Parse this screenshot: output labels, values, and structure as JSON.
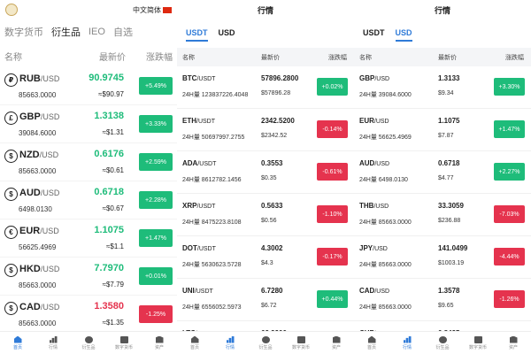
{
  "colors": {
    "up": "#1ebc7a",
    "down": "#e5334e",
    "accent": "#2f7bd8"
  },
  "panel1": {
    "lang_label": "中文简体",
    "tabs": [
      "数字货币",
      "衍生品",
      "IEO",
      "自选"
    ],
    "active_tab": 1,
    "headers": {
      "name": "名称",
      "price": "最新价",
      "change": "涨跌幅"
    },
    "rows": [
      {
        "icon": "₽",
        "sym": "RUB",
        "quote": "/USD",
        "vol": "85663.0000",
        "price": "90.9745",
        "sub": "≈$90.97",
        "change": "+5.49%",
        "dir": "up"
      },
      {
        "icon": "£",
        "sym": "GBP",
        "quote": "/USD",
        "vol": "39084.6000",
        "price": "1.3138",
        "sub": "≈$1.31",
        "change": "+3.33%",
        "dir": "up"
      },
      {
        "icon": "$",
        "sym": "NZD",
        "quote": "/USD",
        "vol": "85663.0000",
        "price": "0.6176",
        "sub": "≈$0.61",
        "change": "+2.59%",
        "dir": "up"
      },
      {
        "icon": "$",
        "sym": "AUD",
        "quote": "/USD",
        "vol": "6498.0130",
        "price": "0.6718",
        "sub": "≈$0.67",
        "change": "+2.28%",
        "dir": "up"
      },
      {
        "icon": "€",
        "sym": "EUR",
        "quote": "/USD",
        "vol": "56625.4969",
        "price": "1.1075",
        "sub": "≈$1.1",
        "change": "+1.47%",
        "dir": "up"
      },
      {
        "icon": "$",
        "sym": "HKD",
        "quote": "/USD",
        "vol": "85663.0000",
        "price": "7.7970",
        "sub": "≈$7.79",
        "change": "+0.01%",
        "dir": "up"
      },
      {
        "icon": "$",
        "sym": "CAD",
        "quote": "/USD",
        "vol": "85663.0000",
        "price": "1.3580",
        "sub": "≈$1.35",
        "change": "-1.25%",
        "dir": "down"
      }
    ]
  },
  "panel2": {
    "title": "行情",
    "tabs": [
      "USDT",
      "USD"
    ],
    "active_tab": 0,
    "headers": {
      "name": "名称",
      "price": "最新价",
      "change": "涨跌幅"
    },
    "rows": [
      {
        "sym": "BTC",
        "quote": "/USDT",
        "vol": "24H量 123837226.4048",
        "price": "57896.2800",
        "sub": "$57896.28",
        "change": "+0.02%",
        "dir": "up"
      },
      {
        "sym": "ETH",
        "quote": "/USDT",
        "vol": "24H量 50697997.2755",
        "price": "2342.5200",
        "sub": "$2342.52",
        "change": "-0.14%",
        "dir": "down"
      },
      {
        "sym": "ADA",
        "quote": "/USDT",
        "vol": "24H量 8612782.1456",
        "price": "0.3553",
        "sub": "$0.35",
        "change": "-0.61%",
        "dir": "down"
      },
      {
        "sym": "XRP",
        "quote": "/USDT",
        "vol": "24H量 8475223.8108",
        "price": "0.5633",
        "sub": "$0.56",
        "change": "-1.10%",
        "dir": "down"
      },
      {
        "sym": "DOT",
        "quote": "/USDT",
        "vol": "24H量 5630623.5728",
        "price": "4.3002",
        "sub": "$4.3",
        "change": "-0.17%",
        "dir": "down"
      },
      {
        "sym": "UNI",
        "quote": "/USDT",
        "vol": "24H量 6556052.5973",
        "price": "6.7280",
        "sub": "$6.72",
        "change": "+0.44%",
        "dir": "up"
      },
      {
        "sym": "LTC",
        "quote": "/USDT",
        "vol": "24H量 3675665.1820",
        "price": "62.9900",
        "sub": "$62.99",
        "change": "+0.11%",
        "dir": "up"
      }
    ]
  },
  "panel3": {
    "title": "行情",
    "tabs": [
      "USDT",
      "USD"
    ],
    "active_tab": 1,
    "headers": {
      "name": "名称",
      "price": "最新价",
      "change": "涨跌幅"
    },
    "rows": [
      {
        "sym": "GBP",
        "quote": "/USD",
        "vol": "24H量 39084.6000",
        "price": "1.3133",
        "sub": "$9.34",
        "change": "+3.30%",
        "dir": "up"
      },
      {
        "sym": "EUR",
        "quote": "/USD",
        "vol": "24H量 56625.4969",
        "price": "1.1075",
        "sub": "$7.87",
        "change": "+1.47%",
        "dir": "up"
      },
      {
        "sym": "AUD",
        "quote": "/USD",
        "vol": "24H量 6498.0130",
        "price": "0.6718",
        "sub": "$4.77",
        "change": "+2.27%",
        "dir": "up"
      },
      {
        "sym": "THB",
        "quote": "/USD",
        "vol": "24H量 85663.0000",
        "price": "33.3059",
        "sub": "$236.88",
        "change": "-7.03%",
        "dir": "down"
      },
      {
        "sym": "JPY",
        "quote": "/USD",
        "vol": "24H量 85663.0000",
        "price": "141.0499",
        "sub": "$1003.19",
        "change": "-4.44%",
        "dir": "down"
      },
      {
        "sym": "CAD",
        "quote": "/USD",
        "vol": "24H量 85663.0000",
        "price": "1.3578",
        "sub": "$9.65",
        "change": "-1.26%",
        "dir": "down"
      },
      {
        "sym": "CHF",
        "quote": "/USD",
        "vol": "24H量 85663.0000",
        "price": "0.8495",
        "sub": "$6.04",
        "change": "-1.46%",
        "dir": "down"
      }
    ]
  },
  "tabbar": {
    "items": [
      {
        "label": "首页",
        "icon": "home-icon"
      },
      {
        "label": "行情",
        "icon": "chart-icon"
      },
      {
        "label": "衍生品",
        "icon": "derivatives-icon"
      },
      {
        "label": "数字货币",
        "icon": "wallet-icon"
      },
      {
        "label": "资产",
        "icon": "assets-icon"
      }
    ]
  },
  "tabbar_active": [
    0,
    1,
    1
  ]
}
